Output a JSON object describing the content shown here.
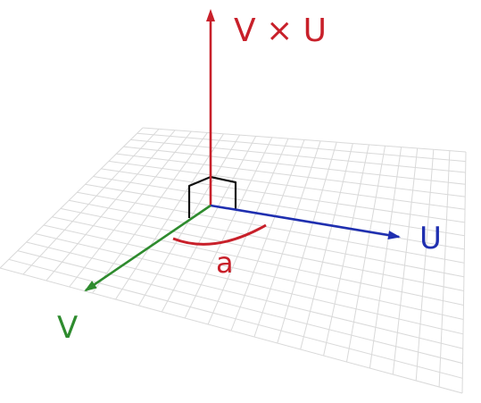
{
  "diagram": {
    "labels": {
      "cross": "V × U",
      "u": "U",
      "v": "V",
      "angle": "a"
    },
    "colors": {
      "cross_vector": "#c8202a",
      "u_vector": "#1f2fb0",
      "v_vector": "#2e8b2e",
      "angle_arc": "#c8202a",
      "right_angle_marker": "#111111",
      "grid": "#d9d9d9",
      "background": "#ffffff"
    },
    "grid": {
      "cells_u": 20,
      "cells_v": 18,
      "visible": true
    }
  }
}
